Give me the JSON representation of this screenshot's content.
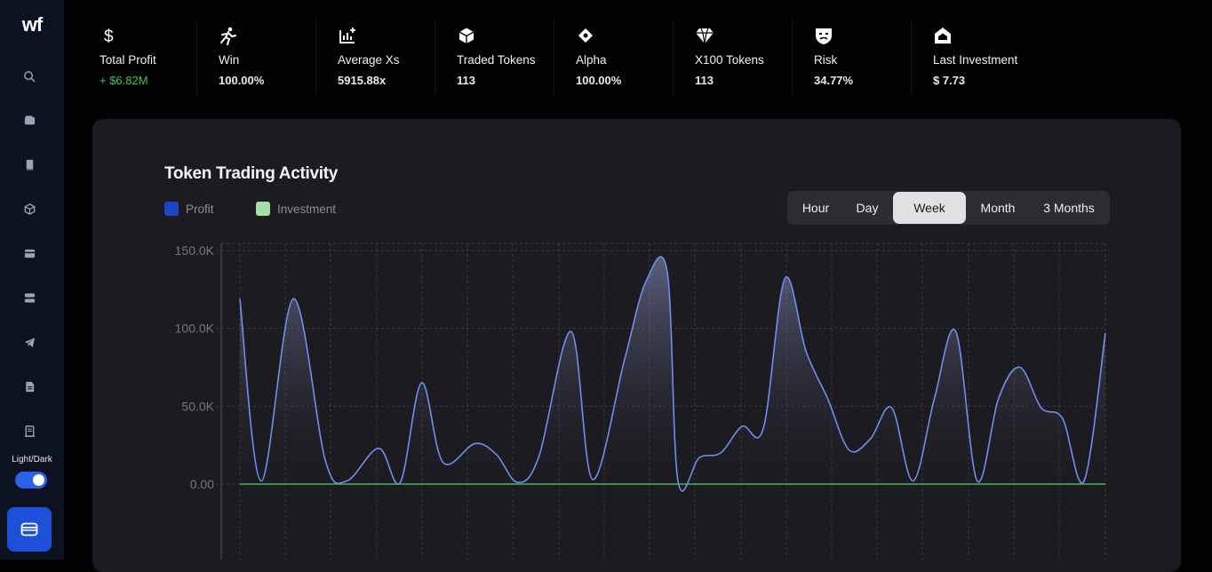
{
  "app": {
    "logo_text": "wf",
    "theme_toggle_label": "Light/Dark"
  },
  "sidebar": {
    "icons": [
      "search-icon",
      "wallet-icon",
      "book-icon",
      "cube-icon",
      "card-icon",
      "server-icon",
      "telegram-icon",
      "document-icon",
      "receipt-icon"
    ],
    "bottom_button_icon": "wallet-icon"
  },
  "stats": [
    {
      "icon": "dollar-icon",
      "label": "Total Profit",
      "value": "+ $6.82M"
    },
    {
      "icon": "runner-icon",
      "label": "Win",
      "value": "100.00%"
    },
    {
      "icon": "chart-plus-icon",
      "label": "Average Xs",
      "value": "5915.88x"
    },
    {
      "icon": "cube-icon",
      "label": "Traded Tokens",
      "value": "113"
    },
    {
      "icon": "diamond-icon",
      "label": "Alpha",
      "value": "100.00%"
    },
    {
      "icon": "gem-icon",
      "label": "X100 Tokens",
      "value": "113"
    },
    {
      "icon": "mask-icon",
      "label": "Risk",
      "value": "34.77%"
    },
    {
      "icon": "house-icon",
      "label": "Last Investment",
      "value": "$ 7.73"
    }
  ],
  "card": {
    "title": "Token Trading Activity",
    "legend": [
      {
        "label": "Profit",
        "color": "#1f44c8"
      },
      {
        "label": "Investment",
        "color": "#a3dfa8"
      }
    ],
    "ranges": [
      "Hour",
      "Day",
      "Week",
      "Month",
      "3 Months"
    ],
    "active_range": "Week"
  },
  "chart_data": {
    "type": "area",
    "series": [
      {
        "name": "Profit",
        "color": "#6f8ff0",
        "points": [
          [
            0,
            119000
          ],
          [
            2,
            2000
          ],
          [
            5,
            119000
          ],
          [
            8,
            15000
          ],
          [
            10,
            2000
          ],
          [
            13,
            23000
          ],
          [
            15,
            1000
          ],
          [
            17,
            65000
          ],
          [
            19,
            14000
          ],
          [
            22,
            26000
          ],
          [
            24,
            19000
          ],
          [
            26,
            1000
          ],
          [
            28,
            18000
          ],
          [
            31,
            98000
          ],
          [
            33,
            3000
          ],
          [
            36,
            80000
          ],
          [
            38,
            130000
          ],
          [
            40,
            136000
          ],
          [
            41,
            2000
          ],
          [
            43,
            17000
          ],
          [
            45,
            20000
          ],
          [
            47,
            37000
          ],
          [
            49,
            36000
          ],
          [
            51,
            132000
          ],
          [
            53,
            85000
          ],
          [
            55,
            55000
          ],
          [
            57,
            22000
          ],
          [
            59,
            29000
          ],
          [
            61,
            49000
          ],
          [
            63,
            2000
          ],
          [
            65,
            55000
          ],
          [
            67,
            98000
          ],
          [
            69,
            2000
          ],
          [
            71,
            55000
          ],
          [
            73,
            75000
          ],
          [
            75,
            49000
          ],
          [
            77,
            42000
          ],
          [
            79,
            2000
          ],
          [
            81,
            97000
          ]
        ]
      },
      {
        "name": "Investment",
        "color": "#4caf72",
        "points": [
          [
            0,
            0
          ],
          [
            81,
            0
          ]
        ]
      }
    ],
    "y_ticks": [
      "150.0K",
      "100.0K",
      "50.0K",
      "0.00"
    ],
    "y_tick_values": [
      150000,
      100000,
      50000,
      0
    ],
    "ylim": [
      -45000,
      150000
    ],
    "xlim": [
      0,
      81
    ],
    "grid": true
  }
}
